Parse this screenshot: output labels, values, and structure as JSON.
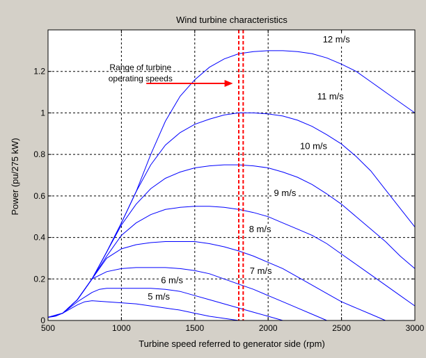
{
  "chart_data": {
    "type": "line",
    "title": "Wind turbine characteristics",
    "xlabel": "Turbine speed referred to generator side (rpm)",
    "ylabel": "Power (pu/275 kW)",
    "xlim": [
      500,
      3000
    ],
    "ylim": [
      0,
      1.4
    ],
    "xticks": [
      500,
      1000,
      1500,
      2000,
      2500,
      3000
    ],
    "yticks": [
      0,
      0.2,
      0.4,
      0.6,
      0.8,
      1,
      1.2
    ],
    "yticklabels": [
      "0",
      "0.2",
      "0.4",
      "0.6",
      "0.8",
      "1",
      "1.2"
    ],
    "grid": true,
    "colors": {
      "curve": "#0000ff",
      "marker": "#ff0000",
      "grid": "#000000",
      "plot_bg": "#ffffff",
      "figure_bg": "#d4d0c8"
    },
    "series": [
      {
        "label": "5 m/s",
        "label_at": [
          1255,
          0.1
        ],
        "x": [
          500,
          550,
          600,
          650,
          700,
          750,
          800,
          900,
          1000,
          1100,
          1200,
          1300,
          1400,
          1500,
          1600,
          1700,
          1800
        ],
        "y": [
          0.015,
          0.02,
          0.035,
          0.055,
          0.075,
          0.09,
          0.095,
          0.09,
          0.085,
          0.08,
          0.07,
          0.06,
          0.05,
          0.035,
          0.02,
          0.01,
          0.0
        ]
      },
      {
        "label": "6 m/s",
        "label_at": [
          1345,
          0.18
        ],
        "x": [
          500,
          600,
          700,
          800,
          850,
          900,
          1000,
          1100,
          1200,
          1300,
          1400,
          1500,
          1600,
          1700,
          1800,
          1900,
          2000,
          2100
        ],
        "y": [
          0.015,
          0.035,
          0.09,
          0.135,
          0.15,
          0.155,
          0.155,
          0.155,
          0.155,
          0.15,
          0.14,
          0.12,
          0.1,
          0.08,
          0.06,
          0.04,
          0.02,
          0.0
        ]
      },
      {
        "label": "7 m/s",
        "label_at": [
          1950,
          0.225
        ],
        "x": [
          500,
          600,
          700,
          800,
          900,
          1000,
          1100,
          1200,
          1300,
          1400,
          1500,
          1600,
          1700,
          1800,
          1900,
          2000,
          2100,
          2200,
          2300,
          2400
        ],
        "y": [
          0.015,
          0.035,
          0.1,
          0.2,
          0.235,
          0.25,
          0.255,
          0.255,
          0.255,
          0.25,
          0.24,
          0.225,
          0.2,
          0.175,
          0.15,
          0.12,
          0.09,
          0.06,
          0.03,
          0.0
        ]
      },
      {
        "label": "8 m/s",
        "label_at": [
          1945,
          0.425
        ],
        "x": [
          500,
          600,
          700,
          800,
          900,
          1000,
          1100,
          1200,
          1300,
          1400,
          1500,
          1600,
          1700,
          1800,
          1900,
          2000,
          2100,
          2200,
          2300,
          2400,
          2500,
          2600,
          2700,
          2800
        ],
        "y": [
          0.015,
          0.035,
          0.1,
          0.2,
          0.3,
          0.345,
          0.365,
          0.375,
          0.38,
          0.38,
          0.38,
          0.37,
          0.355,
          0.335,
          0.31,
          0.28,
          0.25,
          0.21,
          0.17,
          0.13,
          0.09,
          0.06,
          0.03,
          0.0
        ]
      },
      {
        "label": "9 m/s",
        "label_at": [
          2115,
          0.6
        ],
        "x": [
          500,
          600,
          700,
          800,
          900,
          1000,
          1100,
          1200,
          1300,
          1400,
          1500,
          1600,
          1700,
          1800,
          1900,
          2000,
          2100,
          2200,
          2300,
          2400,
          2500,
          2600,
          2700,
          2800,
          2900,
          3000
        ],
        "y": [
          0.015,
          0.035,
          0.1,
          0.2,
          0.31,
          0.41,
          0.47,
          0.51,
          0.535,
          0.545,
          0.55,
          0.55,
          0.545,
          0.535,
          0.52,
          0.5,
          0.47,
          0.44,
          0.41,
          0.37,
          0.32,
          0.27,
          0.22,
          0.17,
          0.12,
          0.07
        ]
      },
      {
        "label": "10 m/s",
        "label_at": [
          2310,
          0.825
        ],
        "x": [
          500,
          600,
          700,
          800,
          900,
          1000,
          1100,
          1200,
          1300,
          1400,
          1500,
          1600,
          1700,
          1800,
          1900,
          2000,
          2100,
          2200,
          2300,
          2400,
          2500,
          2600,
          2700,
          2800,
          2900,
          3000
        ],
        "y": [
          0.015,
          0.035,
          0.1,
          0.2,
          0.33,
          0.46,
          0.56,
          0.635,
          0.685,
          0.715,
          0.735,
          0.745,
          0.75,
          0.75,
          0.745,
          0.735,
          0.715,
          0.69,
          0.655,
          0.61,
          0.56,
          0.5,
          0.44,
          0.38,
          0.31,
          0.25
        ]
      },
      {
        "label": "11 m/s",
        "label_at": [
          2425,
          1.065
        ],
        "x": [
          500,
          600,
          700,
          800,
          900,
          1000,
          1100,
          1200,
          1300,
          1400,
          1500,
          1600,
          1700,
          1800,
          1900,
          2000,
          2100,
          2200,
          2300,
          2400,
          2500,
          2600,
          2700,
          2800,
          2900,
          3000
        ],
        "y": [
          0.015,
          0.035,
          0.1,
          0.2,
          0.33,
          0.47,
          0.62,
          0.75,
          0.845,
          0.905,
          0.945,
          0.97,
          0.99,
          1.0,
          1.0,
          0.995,
          0.985,
          0.965,
          0.935,
          0.895,
          0.85,
          0.79,
          0.72,
          0.63,
          0.54,
          0.45
        ]
      },
      {
        "label": "12 m/s",
        "label_at": [
          2465,
          1.34
        ],
        "x": [
          500,
          600,
          700,
          800,
          900,
          1000,
          1100,
          1200,
          1300,
          1400,
          1500,
          1600,
          1700,
          1800,
          1900,
          2000,
          2100,
          2200,
          2300,
          2400,
          2500,
          2600,
          2700,
          2800,
          2900,
          3000
        ],
        "y": [
          0.015,
          0.035,
          0.1,
          0.2,
          0.33,
          0.47,
          0.62,
          0.8,
          0.96,
          1.08,
          1.16,
          1.22,
          1.26,
          1.285,
          1.295,
          1.3,
          1.3,
          1.295,
          1.285,
          1.265,
          1.235,
          1.2,
          1.15,
          1.1,
          1.05,
          1.0
        ]
      }
    ],
    "annotation": {
      "text_lines": [
        "Range of turbine",
        "operating speeds"
      ],
      "text_at": [
        1130,
        1.205
      ],
      "arrow_from": [
        1170,
        1.142
      ],
      "arrow_to": [
        1760,
        1.142
      ],
      "vlines": [
        1800,
        1830
      ]
    }
  }
}
